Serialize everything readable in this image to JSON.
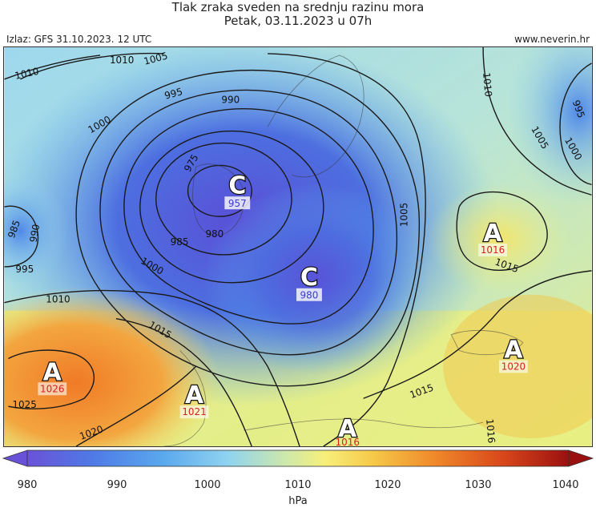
{
  "header": {
    "title": "Tlak zraka sveden na srednju razinu mora",
    "date": "Petak, 03.11.2023 u 07h",
    "source": "Izlaz: GFS 31.10.2023. 12 UTC",
    "website": "www.neverin.hr"
  },
  "map": {
    "centers": [
      {
        "symbol": "C",
        "value": "957",
        "type": "low"
      },
      {
        "symbol": "C",
        "value": "980",
        "type": "low"
      },
      {
        "symbol": "A",
        "value": "1016",
        "type": "high"
      },
      {
        "symbol": "A",
        "value": "1020",
        "type": "high"
      },
      {
        "symbol": "A",
        "value": "1026",
        "type": "high"
      },
      {
        "symbol": "A",
        "value": "1021",
        "type": "high"
      },
      {
        "symbol": "A",
        "value": "1016",
        "type": "high"
      }
    ],
    "isobar_labels": [
      "1010",
      "1010",
      "1005",
      "995",
      "990",
      "1000",
      "975",
      "980",
      "985",
      "985",
      "990",
      "995",
      "1000",
      "1010",
      "1015",
      "1005",
      "1010",
      "1005",
      "1000",
      "995",
      "1015",
      "1015",
      "1025",
      "1020",
      "1016"
    ],
    "colors": {
      "low_label": "#3a3ad0",
      "high_label": "#d42020"
    }
  },
  "colorbar": {
    "unit": "hPa",
    "ticks": [
      "980",
      "990",
      "1000",
      "1010",
      "1020",
      "1030",
      "1040"
    ],
    "range": [
      980,
      1040
    ],
    "stops": [
      "#6a52d8",
      "#4f7ae6",
      "#5aa8ee",
      "#8fd3f0",
      "#cfe9a8",
      "#f7ef7a",
      "#f6c848",
      "#f08a2a",
      "#d8461a",
      "#9a1010"
    ]
  }
}
